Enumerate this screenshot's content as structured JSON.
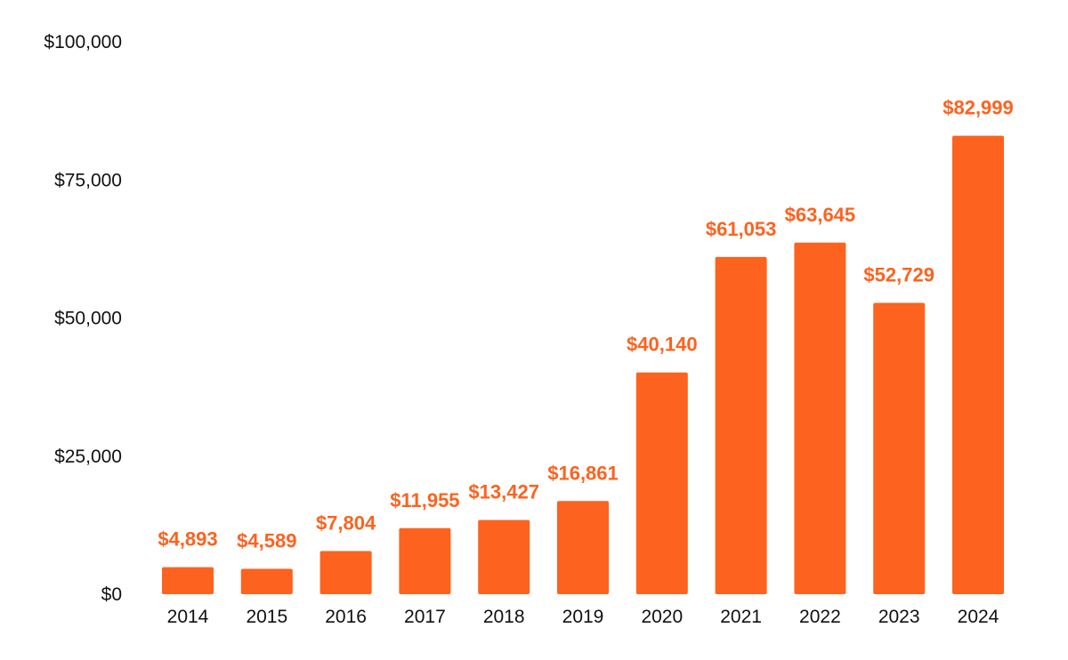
{
  "chart_data": {
    "type": "bar",
    "title": "",
    "xlabel": "",
    "ylabel": "",
    "categories": [
      "2014",
      "2015",
      "2016",
      "2017",
      "2018",
      "2019",
      "2020",
      "2021",
      "2022",
      "2023",
      "2024"
    ],
    "values": [
      4893,
      4589,
      7804,
      11955,
      13427,
      16861,
      40140,
      61053,
      63645,
      52729,
      82999
    ],
    "value_labels": [
      "$4,893",
      "$4,589",
      "$7,804",
      "$11,955",
      "$13,427",
      "$16,861",
      "$40,140",
      "$61,053",
      "$63,645",
      "$52,729",
      "$82,999"
    ],
    "ylim": [
      0,
      100000
    ],
    "yticks": [
      0,
      25000,
      50000,
      75000,
      100000
    ],
    "ytick_labels": [
      "$0",
      "$25,000",
      "$50,000",
      "$75,000",
      "$100,000"
    ],
    "grid": false,
    "legend": "none",
    "colors": {
      "bar": "#fd621e",
      "data_label": "#fd621e",
      "tick_text": "#111111"
    }
  }
}
